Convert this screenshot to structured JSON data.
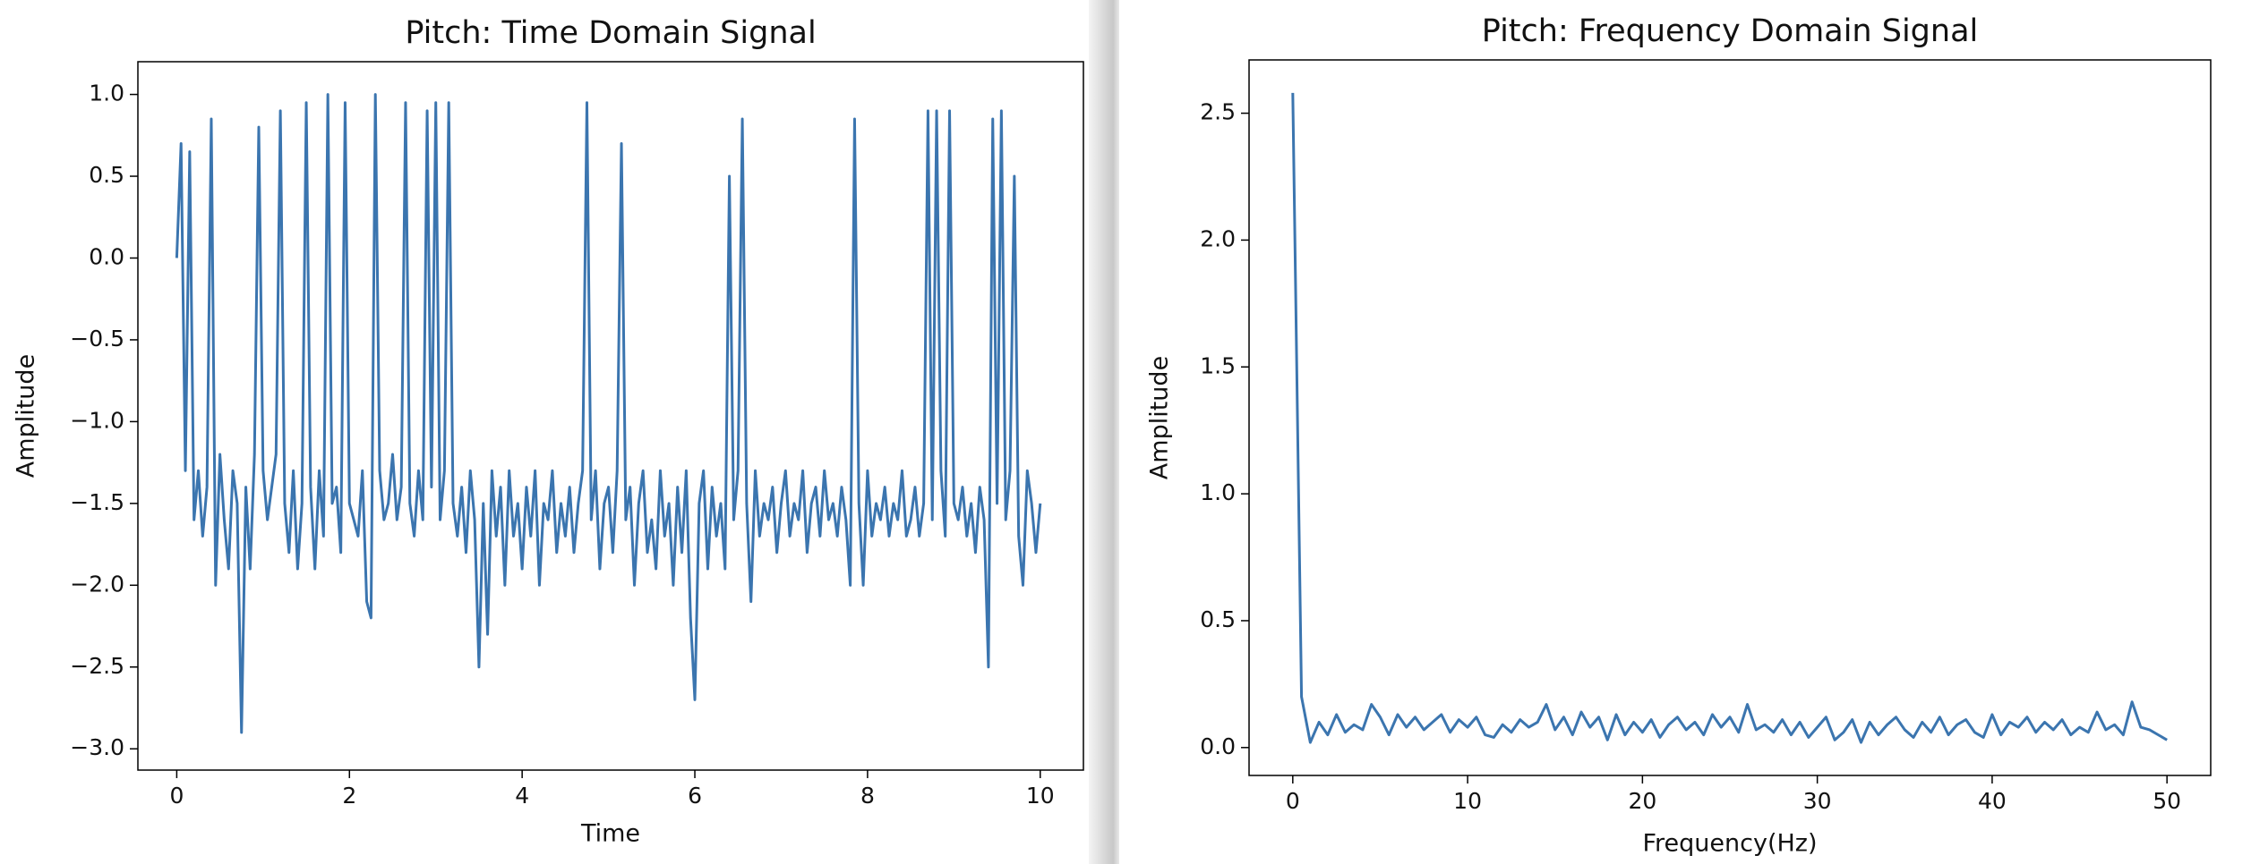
{
  "chart_data": [
    {
      "type": "line",
      "title": "Pitch: Time Domain Signal",
      "xlabel": "Time",
      "ylabel": "Amplitude",
      "xlim": [
        -0.45,
        10.5
      ],
      "ylim": [
        -3.13,
        1.2
      ],
      "xticks": [
        0,
        2,
        4,
        6,
        8,
        10
      ],
      "yticks": [
        {
          "value": -3,
          "label": "−3.0"
        },
        {
          "value": -2.5,
          "label": "−2.5"
        },
        {
          "value": -2,
          "label": "−2.0"
        },
        {
          "value": -1.5,
          "label": "−1.5"
        },
        {
          "value": -1,
          "label": "−1.0"
        },
        {
          "value": -0.5,
          "label": "−0.5"
        },
        {
          "value": 0,
          "label": "0.0"
        },
        {
          "value": 0.5,
          "label": "0.5"
        },
        {
          "value": 1,
          "label": "1.0"
        }
      ],
      "grid": false,
      "x": [
        0,
        0.05,
        0.1,
        0.15,
        0.2,
        0.25,
        0.3,
        0.35,
        0.4,
        0.45,
        0.5,
        0.55,
        0.6,
        0.65,
        0.7,
        0.75,
        0.8,
        0.85,
        0.9,
        0.95,
        1,
        1.05,
        1.1,
        1.15,
        1.2,
        1.25,
        1.3,
        1.35,
        1.4,
        1.45,
        1.5,
        1.55,
        1.6,
        1.65,
        1.7,
        1.75,
        1.8,
        1.85,
        1.9,
        1.95,
        2,
        2.05,
        2.1,
        2.15,
        2.2,
        2.25,
        2.3,
        2.35,
        2.4,
        2.45,
        2.5,
        2.55,
        2.6,
        2.65,
        2.7,
        2.75,
        2.8,
        2.85,
        2.9,
        2.95,
        3,
        3.05,
        3.1,
        3.15,
        3.2,
        3.25,
        3.3,
        3.35,
        3.4,
        3.45,
        3.5,
        3.55,
        3.6,
        3.65,
        3.7,
        3.75,
        3.8,
        3.85,
        3.9,
        3.95,
        4,
        4.05,
        4.1,
        4.15,
        4.2,
        4.25,
        4.3,
        4.35,
        4.4,
        4.45,
        4.5,
        4.55,
        4.6,
        4.65,
        4.7,
        4.75,
        4.8,
        4.85,
        4.9,
        4.95,
        5,
        5.05,
        5.1,
        5.15,
        5.2,
        5.25,
        5.3,
        5.35,
        5.4,
        5.45,
        5.5,
        5.55,
        5.6,
        5.65,
        5.7,
        5.75,
        5.8,
        5.85,
        5.9,
        5.95,
        6,
        6.05,
        6.1,
        6.15,
        6.2,
        6.25,
        6.3,
        6.35,
        6.4,
        6.45,
        6.5,
        6.55,
        6.6,
        6.65,
        6.7,
        6.75,
        6.8,
        6.85,
        6.9,
        6.95,
        7,
        7.05,
        7.1,
        7.15,
        7.2,
        7.25,
        7.3,
        7.35,
        7.4,
        7.45,
        7.5,
        7.55,
        7.6,
        7.65,
        7.7,
        7.75,
        7.8,
        7.85,
        7.9,
        7.95,
        8,
        8.05,
        8.1,
        8.15,
        8.2,
        8.25,
        8.3,
        8.35,
        8.4,
        8.45,
        8.5,
        8.55,
        8.6,
        8.65,
        8.7,
        8.75,
        8.8,
        8.85,
        8.9,
        8.95,
        9,
        9.05,
        9.1,
        9.15,
        9.2,
        9.25,
        9.3,
        9.35,
        9.4,
        9.45,
        9.5,
        9.55,
        9.6,
        9.65,
        9.7,
        9.75,
        9.8,
        9.85,
        9.9,
        9.95,
        10
      ],
      "series": [
        {
          "color": "#3b75af",
          "values": [
            0.0,
            0.7,
            -1.3,
            0.65,
            -1.6,
            -1.3,
            -1.7,
            -1.4,
            0.85,
            -2.0,
            -1.2,
            -1.6,
            -1.9,
            -1.3,
            -1.5,
            -2.9,
            -1.4,
            -1.9,
            -1.2,
            0.8,
            -1.3,
            -1.6,
            -1.4,
            -1.2,
            0.9,
            -1.5,
            -1.8,
            -1.3,
            -1.9,
            -1.5,
            0.95,
            -1.4,
            -1.9,
            -1.3,
            -1.7,
            1.0,
            -1.5,
            -1.4,
            -1.8,
            0.95,
            -1.5,
            -1.6,
            -1.7,
            -1.3,
            -2.1,
            -2.2,
            1.0,
            -1.3,
            -1.6,
            -1.5,
            -1.2,
            -1.6,
            -1.4,
            0.95,
            -1.5,
            -1.7,
            -1.3,
            -1.6,
            0.9,
            -1.4,
            0.95,
            -1.6,
            -1.3,
            0.95,
            -1.5,
            -1.7,
            -1.4,
            -1.8,
            -1.3,
            -1.6,
            -2.5,
            -1.5,
            -2.3,
            -1.3,
            -1.7,
            -1.4,
            -2.0,
            -1.3,
            -1.7,
            -1.5,
            -1.9,
            -1.4,
            -1.7,
            -1.3,
            -2.0,
            -1.5,
            -1.6,
            -1.3,
            -1.8,
            -1.5,
            -1.7,
            -1.4,
            -1.8,
            -1.5,
            -1.3,
            0.95,
            -1.6,
            -1.3,
            -1.9,
            -1.5,
            -1.4,
            -1.8,
            -1.3,
            0.7,
            -1.6,
            -1.4,
            -2.0,
            -1.5,
            -1.3,
            -1.8,
            -1.6,
            -1.9,
            -1.3,
            -1.7,
            -1.5,
            -2.0,
            -1.4,
            -1.8,
            -1.3,
            -2.2,
            -2.7,
            -1.5,
            -1.3,
            -1.9,
            -1.4,
            -1.7,
            -1.5,
            -1.9,
            0.5,
            -1.6,
            -1.3,
            0.85,
            -1.5,
            -2.1,
            -1.3,
            -1.7,
            -1.5,
            -1.6,
            -1.4,
            -1.8,
            -1.5,
            -1.3,
            -1.7,
            -1.5,
            -1.6,
            -1.3,
            -1.8,
            -1.5,
            -1.4,
            -1.7,
            -1.3,
            -1.6,
            -1.5,
            -1.7,
            -1.4,
            -1.6,
            -2.0,
            0.85,
            -1.5,
            -2.0,
            -1.3,
            -1.7,
            -1.5,
            -1.6,
            -1.4,
            -1.7,
            -1.5,
            -1.6,
            -1.3,
            -1.7,
            -1.6,
            -1.4,
            -1.7,
            -1.5,
            0.9,
            -1.6,
            0.9,
            -1.3,
            -1.7,
            0.9,
            -1.5,
            -1.6,
            -1.4,
            -1.7,
            -1.5,
            -1.8,
            -1.4,
            -1.6,
            -2.5,
            0.85,
            -1.5,
            0.9,
            -1.6,
            -1.3,
            0.5,
            -1.7,
            -2.0,
            -1.3,
            -1.5,
            -1.8,
            -1.5
          ]
        }
      ]
    },
    {
      "type": "line",
      "title": "Pitch: Frequency Domain Signal",
      "xlabel": "Frequency(Hz)",
      "ylabel": "Amplitude",
      "xlim": [
        -2.5,
        52.5
      ],
      "ylim": [
        -0.11,
        2.71
      ],
      "xticks": [
        0,
        10,
        20,
        30,
        40,
        50
      ],
      "yticks": [
        {
          "value": 0,
          "label": "0.0"
        },
        {
          "value": 0.5,
          "label": "0.5"
        },
        {
          "value": 1,
          "label": "1.0"
        },
        {
          "value": 1.5,
          "label": "1.5"
        },
        {
          "value": 2,
          "label": "2.0"
        },
        {
          "value": 2.5,
          "label": "2.5"
        }
      ],
      "grid": false,
      "x": [
        0,
        0.5,
        1,
        1.5,
        2,
        2.5,
        3,
        3.5,
        4,
        4.5,
        5,
        5.5,
        6,
        6.5,
        7,
        7.5,
        8,
        8.5,
        9,
        9.5,
        10,
        10.5,
        11,
        11.5,
        12,
        12.5,
        13,
        13.5,
        14,
        14.5,
        15,
        15.5,
        16,
        16.5,
        17,
        17.5,
        18,
        18.5,
        19,
        19.5,
        20,
        20.5,
        21,
        21.5,
        22,
        22.5,
        23,
        23.5,
        24,
        24.5,
        25,
        25.5,
        26,
        26.5,
        27,
        27.5,
        28,
        28.5,
        29,
        29.5,
        30,
        30.5,
        31,
        31.5,
        32,
        32.5,
        33,
        33.5,
        34,
        34.5,
        35,
        35.5,
        36,
        36.5,
        37,
        37.5,
        38,
        38.5,
        39,
        39.5,
        40,
        40.5,
        41,
        41.5,
        42,
        42.5,
        43,
        43.5,
        44,
        44.5,
        45,
        45.5,
        46,
        46.5,
        47,
        47.5,
        48,
        48.5,
        49,
        49.5,
        50
      ],
      "series": [
        {
          "color": "#3b75af",
          "values": [
            2.58,
            0.2,
            0.02,
            0.1,
            0.05,
            0.13,
            0.06,
            0.09,
            0.07,
            0.17,
            0.12,
            0.05,
            0.13,
            0.08,
            0.12,
            0.07,
            0.1,
            0.13,
            0.06,
            0.11,
            0.08,
            0.12,
            0.05,
            0.04,
            0.09,
            0.06,
            0.11,
            0.08,
            0.1,
            0.17,
            0.07,
            0.12,
            0.05,
            0.14,
            0.08,
            0.12,
            0.03,
            0.13,
            0.05,
            0.1,
            0.06,
            0.11,
            0.04,
            0.09,
            0.12,
            0.07,
            0.1,
            0.05,
            0.13,
            0.08,
            0.12,
            0.06,
            0.17,
            0.07,
            0.09,
            0.06,
            0.11,
            0.05,
            0.1,
            0.04,
            0.08,
            0.12,
            0.03,
            0.06,
            0.11,
            0.02,
            0.1,
            0.05,
            0.09,
            0.12,
            0.07,
            0.04,
            0.1,
            0.06,
            0.12,
            0.05,
            0.09,
            0.11,
            0.06,
            0.04,
            0.13,
            0.05,
            0.1,
            0.08,
            0.12,
            0.06,
            0.1,
            0.07,
            0.11,
            0.05,
            0.08,
            0.06,
            0.14,
            0.07,
            0.09,
            0.05,
            0.18,
            0.08,
            0.07,
            0.05,
            0.03
          ]
        }
      ]
    }
  ]
}
